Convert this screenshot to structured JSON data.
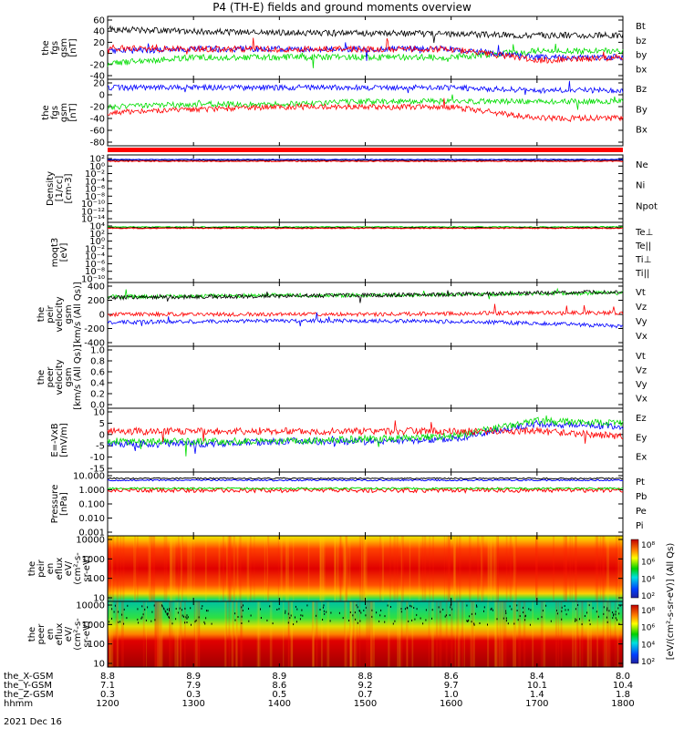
{
  "title": "P4 (TH-E) fields and ground moments overview",
  "date": "2021 Dec 16",
  "colors": {
    "black": "#000000",
    "red": "#ff0000",
    "green": "#00dd00",
    "blue": "#0000ff"
  },
  "panels": [
    {
      "id": "p1",
      "ylabel": [
        "the",
        "fgs",
        "gsm",
        "[nT]"
      ],
      "ylim": [
        -40,
        60
      ],
      "ticks": [
        "60",
        "40",
        "20",
        "0",
        "-20",
        "-40"
      ],
      "legend": [
        {
          "t": "Bt",
          "c": "black"
        },
        {
          "t": "bz",
          "c": "red"
        },
        {
          "t": "by",
          "c": "green"
        },
        {
          "t": "bx",
          "c": "blue"
        }
      ]
    },
    {
      "id": "p2",
      "ylabel": [
        "the",
        "fgs",
        "gsm",
        "[nT]"
      ],
      "ylim": [
        -90,
        30
      ],
      "ticks": [
        "20",
        "0",
        "-20",
        "-40",
        "-60",
        "-80"
      ],
      "legend": [
        {
          "t": "Bz",
          "c": "red"
        },
        {
          "t": "By",
          "c": "green"
        },
        {
          "t": "Bx",
          "c": "blue"
        }
      ]
    },
    {
      "id": "p3",
      "ylabel": [
        "Density",
        "[1/cc]",
        "[cm-3]"
      ],
      "log": true,
      "ticks": [
        "10²",
        "10⁰",
        "10⁻²",
        "10⁻⁴",
        "10⁻⁶",
        "10⁻⁸",
        "10⁻¹⁰",
        "10⁻¹²",
        "10⁻¹⁴"
      ],
      "legend": [
        {
          "t": "Ne",
          "c": "red"
        },
        {
          "t": "Ni",
          "c": "black"
        },
        {
          "t": "Npot",
          "c": "blue"
        }
      ]
    },
    {
      "id": "p4",
      "ylabel": [
        "moqt3",
        "[eV]"
      ],
      "log": true,
      "ticks": [
        "10⁴",
        "10²",
        "10⁰",
        "10⁻²",
        "10⁻⁴",
        "10⁻⁶",
        "10⁻⁸",
        "10⁻¹⁰"
      ],
      "legend": [
        {
          "t": "Te⊥",
          "c": "red"
        },
        {
          "t": "Te||",
          "c": "black"
        },
        {
          "t": "Ti⊥",
          "c": "green"
        },
        {
          "t": "Ti||",
          "c": "green"
        }
      ]
    },
    {
      "id": "p5",
      "ylabel": [
        "the",
        "peir",
        "velocity",
        "gsm",
        "[km/s (All Qs)]"
      ],
      "ylim": [
        -400,
        400
      ],
      "ticks": [
        "400",
        "200",
        "0",
        "-200",
        "-400"
      ],
      "legend": [
        {
          "t": "Vt",
          "c": "black"
        },
        {
          "t": "Vz",
          "c": "red"
        },
        {
          "t": "Vy",
          "c": "green"
        },
        {
          "t": "Vx",
          "c": "blue"
        }
      ]
    },
    {
      "id": "p6",
      "ylabel": [
        "the",
        "peer",
        "velocity",
        "gsm",
        "[km/s (All Qs)]"
      ],
      "ylim": [
        0,
        1
      ],
      "ticks": [
        "1.0",
        "0.8",
        "0.6",
        "0.4",
        "0.2",
        "0.0"
      ],
      "legend": [
        {
          "t": "Vt",
          "c": "black"
        },
        {
          "t": "Vz",
          "c": "red"
        },
        {
          "t": "Vy",
          "c": "green"
        },
        {
          "t": "Vx",
          "c": "blue"
        }
      ]
    },
    {
      "id": "p7",
      "ylabel": [
        "E=-VxB",
        "[mV/m]"
      ],
      "ylim": [
        -15,
        10
      ],
      "ticks": [
        "10",
        "5",
        "0",
        "-5",
        "-10",
        "-15"
      ],
      "legend": [
        {
          "t": "Ez",
          "c": "red"
        },
        {
          "t": "Ey",
          "c": "green"
        },
        {
          "t": "Ex",
          "c": "blue"
        }
      ]
    },
    {
      "id": "p8",
      "ylabel": [
        "Pressure",
        "[nPa]"
      ],
      "log": true,
      "ticks": [
        "10.000",
        "1.000",
        "0.100",
        "0.010",
        "0.001"
      ],
      "legend": [
        {
          "t": "Pt",
          "c": "black"
        },
        {
          "t": "Pb",
          "c": "red"
        },
        {
          "t": "Pe",
          "c": "green"
        },
        {
          "t": "Pi",
          "c": "blue"
        }
      ]
    },
    {
      "id": "p9",
      "ylabel": [
        "the",
        "peir",
        "en",
        "eflux",
        "eV/",
        "(cm²-s-",
        "sr-eV)"
      ],
      "log": true,
      "ticks": [
        "10000",
        "1000",
        "100",
        "10"
      ],
      "cbar": [
        "10⁸",
        "10⁶",
        "10⁴",
        "10²"
      ]
    },
    {
      "id": "p10",
      "ylabel": [
        "the",
        "peer",
        "en",
        "eflux",
        "eV/",
        "(cm²-s-",
        "sr-eV)"
      ],
      "log": true,
      "ticks": [
        "10000",
        "1000",
        "100",
        "10"
      ],
      "cbar": [
        "10⁸",
        "10⁶",
        "10⁴",
        "10²"
      ]
    }
  ],
  "colorbar_label": "[eV/(cm²-s-sr-eV)] (All Qs)",
  "xaxis": {
    "rows": [
      {
        "label": "the_X-GSM",
        "values": [
          "8.8",
          "8.9",
          "8.9",
          "8.8",
          "8.6",
          "8.4",
          "8.0"
        ]
      },
      {
        "label": "the_Y-GSM",
        "values": [
          "7.1",
          "7.9",
          "8.6",
          "9.2",
          "9.7",
          "10.1",
          "10.4"
        ]
      },
      {
        "label": "the_Z-GSM",
        "values": [
          "0.3",
          "0.3",
          "0.5",
          "0.7",
          "1.0",
          "1.4",
          "1.8"
        ]
      },
      {
        "label": "hhmm",
        "values": [
          "1200",
          "1300",
          "1400",
          "1500",
          "1600",
          "1700",
          "1800"
        ]
      }
    ]
  },
  "chart_data": {
    "type": "line",
    "title": "P4 (TH-E) fields and ground moments overview",
    "x": [
      "1200",
      "1300",
      "1400",
      "1500",
      "1600",
      "1700",
      "1800"
    ],
    "series": [
      {
        "name": "Bt",
        "panel": "p1",
        "values": [
          40,
          36,
          34,
          33,
          32,
          30,
          30
        ]
      },
      {
        "name": "bz",
        "panel": "p1",
        "values": [
          10,
          8,
          8,
          8,
          8,
          -10,
          -5
        ]
      },
      {
        "name": "by",
        "panel": "p1",
        "values": [
          -15,
          -5,
          -5,
          -5,
          -5,
          5,
          5
        ]
      },
      {
        "name": "bx",
        "panel": "p1",
        "values": [
          5,
          8,
          8,
          8,
          8,
          -5,
          -5
        ]
      },
      {
        "name": "Bz",
        "panel": "p2",
        "values": [
          -30,
          -25,
          -20,
          -20,
          -20,
          -40,
          -40
        ]
      },
      {
        "name": "By",
        "panel": "p2",
        "values": [
          -20,
          -15,
          -15,
          -10,
          -10,
          -10,
          -10
        ]
      },
      {
        "name": "Bx",
        "panel": "p2",
        "values": [
          15,
          15,
          15,
          15,
          15,
          10,
          10
        ]
      },
      {
        "name": "Vt",
        "panel": "p5",
        "values": [
          210,
          220,
          230,
          240,
          250,
          270,
          280
        ]
      },
      {
        "name": "Vz",
        "panel": "p5",
        "values": [
          0,
          0,
          0,
          0,
          10,
          20,
          20
        ]
      },
      {
        "name": "Vy",
        "panel": "p5",
        "values": [
          220,
          230,
          240,
          240,
          250,
          260,
          270
        ]
      },
      {
        "name": "Vx",
        "panel": "p5",
        "values": [
          -100,
          -90,
          -80,
          -80,
          -90,
          -110,
          -150
        ]
      },
      {
        "name": "Ez",
        "panel": "p7",
        "values": [
          1,
          1,
          1,
          1,
          1,
          1,
          -1
        ]
      },
      {
        "name": "Ey",
        "panel": "p7",
        "values": [
          -3,
          -3,
          -3,
          -2,
          -1,
          5,
          4
        ]
      },
      {
        "name": "Ex",
        "panel": "p7",
        "values": [
          -4,
          -4,
          -3,
          -3,
          -2,
          4,
          3
        ]
      }
    ]
  }
}
